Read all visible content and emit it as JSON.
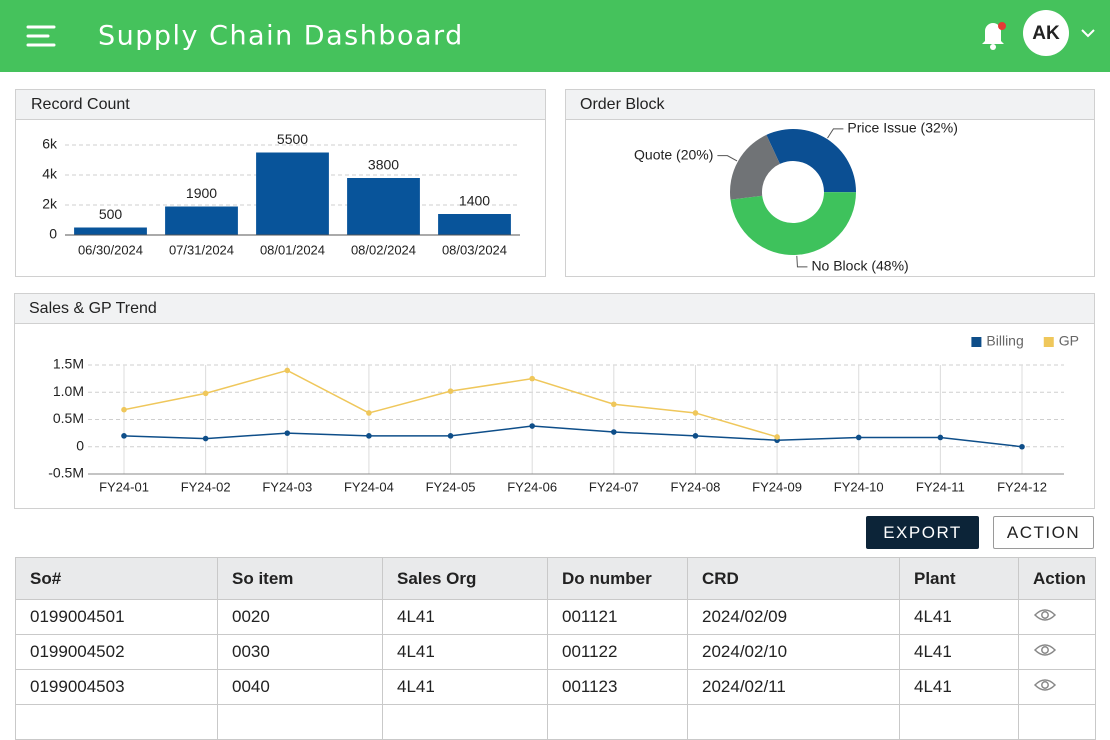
{
  "header": {
    "title": "Supply Chain Dashboard",
    "avatar": "AK"
  },
  "chart_data": [
    {
      "type": "bar",
      "title": "Record Count",
      "categories": [
        "06/30/2024",
        "07/31/2024",
        "08/01/2024",
        "08/02/2024",
        "08/03/2024"
      ],
      "values": [
        500,
        1900,
        5500,
        3800,
        1400
      ],
      "color": "#08549a",
      "ylim": [
        0,
        6000
      ],
      "yticks": [
        0,
        {
          "value": 2000,
          "label": "2k"
        },
        {
          "value": 4000,
          "label": "4k"
        },
        {
          "value": 6000,
          "label": "6k"
        }
      ],
      "grid": true
    },
    {
      "type": "donut",
      "title": "Order Block",
      "categories": [
        "Price Issue (32%)",
        "No Block (48%)",
        "Quote (20%)"
      ],
      "values": [
        32,
        48,
        20
      ],
      "colors": [
        "#0b4f93",
        "#3ec25c",
        "#707376"
      ]
    },
    {
      "type": "line",
      "title": "Sales & GP Trend",
      "categories": [
        "FY24-01",
        "FY24-02",
        "FY24-03",
        "FY24-04",
        "FY24-05",
        "FY24-06",
        "FY24-07",
        "FY24-08",
        "FY24-09",
        "FY24-10",
        "FY24-11",
        "FY24-12"
      ],
      "series": [
        {
          "name": "Billing",
          "color": "#0e4e89",
          "values": [
            200000,
            150000,
            250000,
            200000,
            200000,
            380000,
            270000,
            200000,
            120000,
            170000,
            170000,
            0
          ]
        },
        {
          "name": "GP",
          "color": "#efc75b",
          "values": [
            680000,
            980000,
            1400000,
            620000,
            1020000,
            1250000,
            780000,
            620000,
            180000,
            null,
            null,
            null
          ]
        }
      ],
      "ylim": [
        -500000,
        1500000
      ],
      "yticks": [
        {
          "value": -500000,
          "label": "-0.5M"
        },
        0,
        {
          "value": 500000,
          "label": "0.5M"
        },
        {
          "value": 1000000,
          "label": "1.0M"
        },
        {
          "value": 1500000,
          "label": "1.5M"
        }
      ],
      "grid": true,
      "legend": "top-right"
    }
  ],
  "buttons": [
    "EXPORT",
    "ACTION"
  ],
  "table": {
    "columns": [
      "So#",
      "So item",
      "Sales Org",
      "Do number",
      "CRD",
      "Plant",
      "Action"
    ],
    "rows": [
      [
        "0199004501",
        "0020",
        "4L41",
        "001121",
        "2024/02/09",
        "4L41"
      ],
      [
        "0199004502",
        "0030",
        "4L41",
        "001122",
        "2024/02/10",
        "4L41"
      ],
      [
        "0199004503",
        "0040",
        "4L41",
        "001123",
        "2024/02/11",
        "4L41"
      ]
    ]
  }
}
